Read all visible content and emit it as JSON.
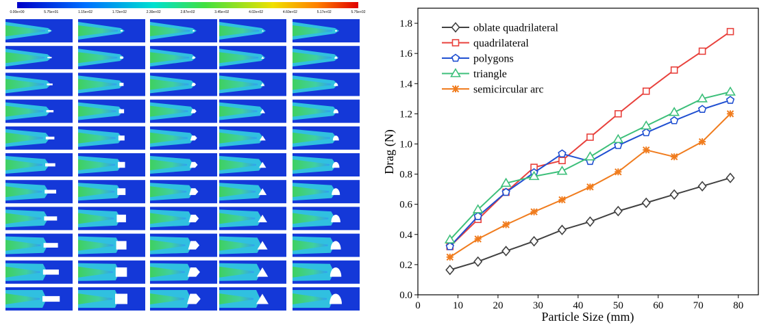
{
  "colorbar": {
    "labels": [
      "0.00e+00",
      "5.75e+01",
      "1.15e+02",
      "1.72e+02",
      "2.30e+02",
      "2.87e+02",
      "3.45e+02",
      "4.02e+02",
      "4.60e+02",
      "5.17e+02",
      "5.75e+02"
    ]
  },
  "chart_data": {
    "type": "line",
    "x_label": "Particle Size (mm)",
    "y_label": "Drag (N)",
    "x": [
      8,
      15,
      22,
      29,
      36,
      43,
      50,
      57,
      64,
      71,
      78
    ],
    "series": [
      {
        "name": "oblate quadrilateral",
        "color": "#404040",
        "marker": "diamond",
        "values": [
          0.165,
          0.22,
          0.29,
          0.355,
          0.43,
          0.485,
          0.555,
          0.61,
          0.665,
          0.72,
          0.775
        ]
      },
      {
        "name": "quadrilateral",
        "color": "#e8413c",
        "marker": "square",
        "values": [
          0.32,
          0.5,
          0.68,
          0.845,
          0.89,
          1.045,
          1.2,
          1.35,
          1.49,
          1.615,
          1.745
        ]
      },
      {
        "name": "polygons",
        "color": "#1f4fd1",
        "marker": "pentagon",
        "values": [
          0.32,
          0.52,
          0.68,
          0.81,
          0.935,
          0.885,
          0.99,
          1.075,
          1.155,
          1.23,
          1.29
        ]
      },
      {
        "name": "triangle",
        "color": "#3cbf7a",
        "marker": "triangle",
        "values": [
          0.365,
          0.565,
          0.74,
          0.785,
          0.82,
          0.915,
          1.03,
          1.12,
          1.21,
          1.3,
          1.345
        ]
      },
      {
        "name": "semicircular arc",
        "color": "#f07c1e",
        "marker": "star",
        "values": [
          0.25,
          0.37,
          0.465,
          0.55,
          0.63,
          0.715,
          0.815,
          0.96,
          0.915,
          1.015,
          1.2
        ]
      }
    ],
    "xlim": [
      0,
      85
    ],
    "xticks": [
      0,
      10,
      20,
      30,
      40,
      50,
      60,
      70,
      80
    ],
    "ylim": [
      0,
      1.9
    ],
    "yticks": [
      {
        "value": 0,
        "label": "0.0"
      },
      0.2,
      0.4,
      0.6,
      0.8,
      {
        "value": 1,
        "label": "1.0"
      },
      1.2,
      1.4,
      1.6,
      1.8
    ],
    "legend": "upper left"
  }
}
